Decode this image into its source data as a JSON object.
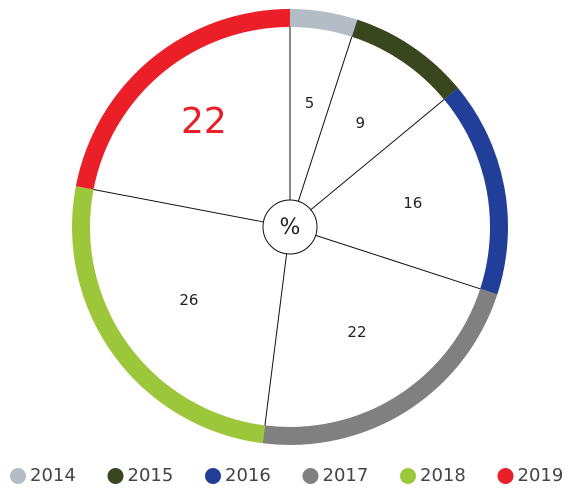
{
  "chart_data": {
    "type": "pie",
    "center_label": "%",
    "categories": [
      "2014",
      "2015",
      "2016",
      "2017",
      "2018",
      "2019"
    ],
    "values": [
      5,
      9,
      16,
      22,
      26,
      22
    ],
    "colors": [
      "#b4bcc6",
      "#3a461d",
      "#213f99",
      "#808081",
      "#9dc73a",
      "#ea1f28"
    ],
    "legend": "bottom"
  }
}
